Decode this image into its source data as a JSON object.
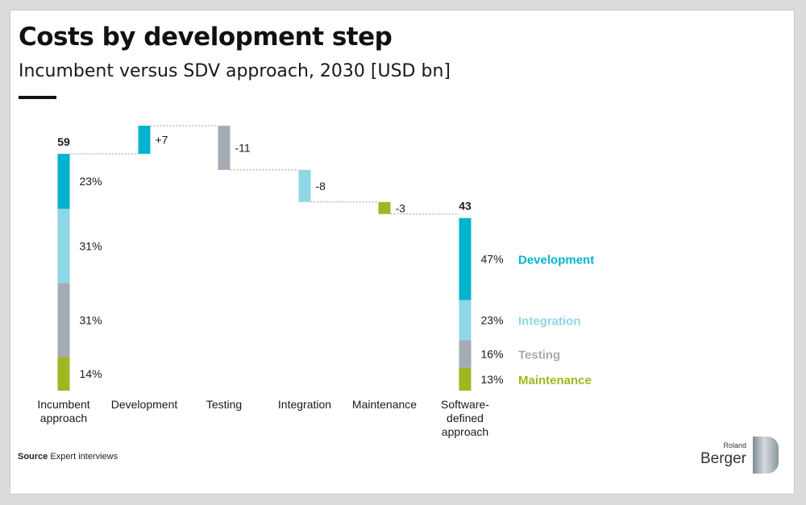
{
  "header": {
    "title": "Costs by development step",
    "subtitle": "Incumbent versus SDV approach, 2030 [USD bn]"
  },
  "footer": {
    "source_label": "Source",
    "source_text": "Expert interviews"
  },
  "logo": {
    "small": "Roland",
    "big": "Berger"
  },
  "colors": {
    "development": "#00b4cd",
    "integration": "#8fd6e6",
    "testing": "#a5abb2",
    "maintenance": "#a1b620",
    "connector": "#9a9a9a",
    "text": "#1a1a1a"
  },
  "chart_data": {
    "type": "waterfall",
    "ylim": [
      0,
      66
    ],
    "categories": [
      [
        "Incumbent",
        "approach"
      ],
      [
        "Development"
      ],
      [
        "Testing"
      ],
      [
        "Integration"
      ],
      [
        "Maintenance"
      ],
      [
        "Software-",
        "defined",
        "approach"
      ]
    ],
    "totals": [
      {
        "index": 0,
        "value": 59,
        "label": "59",
        "segments": [
          {
            "component": "maintenance",
            "share_label": "14%"
          },
          {
            "component": "testing",
            "share_label": "31%"
          },
          {
            "component": "integration",
            "share_label": "31%"
          },
          {
            "component": "development",
            "share_label": "23%"
          }
        ]
      },
      {
        "index": 5,
        "value": 43,
        "label": "43",
        "segments": [
          {
            "component": "maintenance",
            "share_label": "13%"
          },
          {
            "component": "testing",
            "share_label": "16%"
          },
          {
            "component": "integration",
            "share_label": "23%"
          },
          {
            "component": "development",
            "share_label": "47%"
          }
        ]
      }
    ],
    "steps": [
      {
        "index": 1,
        "component": "development",
        "change": 7,
        "label": "+7"
      },
      {
        "index": 2,
        "component": "testing",
        "change": -11,
        "label": "-11"
      },
      {
        "index": 3,
        "component": "integration",
        "change": -8,
        "label": "-8"
      },
      {
        "index": 4,
        "component": "maintenance",
        "change": -3,
        "label": "-3"
      }
    ],
    "legend": [
      {
        "name": "Development",
        "component": "development"
      },
      {
        "name": "Integration",
        "component": "integration"
      },
      {
        "name": "Testing",
        "component": "testing"
      },
      {
        "name": "Maintenance",
        "component": "maintenance"
      }
    ]
  }
}
